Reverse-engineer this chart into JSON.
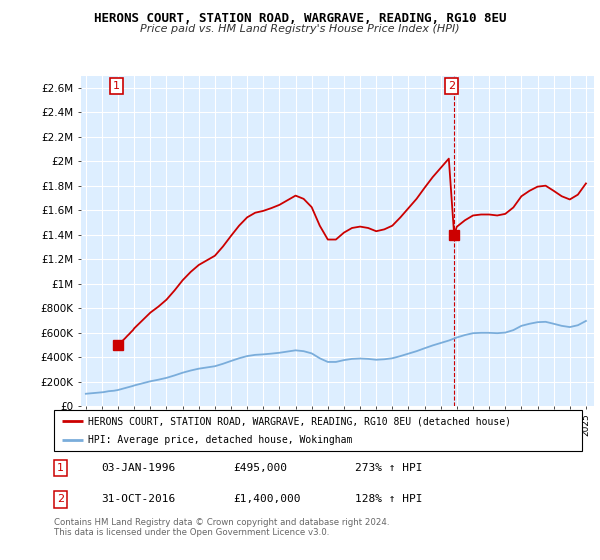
{
  "title": "HERONS COURT, STATION ROAD, WARGRAVE, READING, RG10 8EU",
  "subtitle": "Price paid vs. HM Land Registry's House Price Index (HPI)",
  "sale1_date": "03-JAN-1996",
  "sale1_price": 495000,
  "sale1_label": "£495,000",
  "sale1_hpi": "273% ↑ HPI",
  "sale1_year": 1996.0,
  "sale2_date": "31-OCT-2016",
  "sale2_price": 1400000,
  "sale2_label": "£1,400,000",
  "sale2_hpi": "128% ↑ HPI",
  "sale2_year": 2016.83,
  "legend_line1": "HERONS COURT, STATION ROAD, WARGRAVE, READING, RG10 8EU (detached house)",
  "legend_line2": "HPI: Average price, detached house, Wokingham",
  "footer": "Contains HM Land Registry data © Crown copyright and database right 2024.\nThis data is licensed under the Open Government Licence v3.0.",
  "sale_color": "#cc0000",
  "hpi_color": "#7aaddb",
  "bg_color": "#ddeeff",
  "ylim_max": 2700000,
  "ylim_min": 0,
  "xlim_min": 1993.7,
  "xlim_max": 2025.5,
  "ytick_interval": 200000,
  "hpi_data_years": [
    1994.0,
    1994.08,
    1994.17,
    1994.25,
    1994.33,
    1994.42,
    1994.5,
    1994.58,
    1994.67,
    1994.75,
    1994.83,
    1994.92,
    1995.0,
    1995.08,
    1995.17,
    1995.25,
    1995.33,
    1995.42,
    1995.5,
    1995.58,
    1995.67,
    1995.75,
    1995.83,
    1995.92,
    1996.0,
    1996.08,
    1996.17,
    1996.25,
    1996.33,
    1996.42,
    1996.5,
    1996.58,
    1996.67,
    1996.75,
    1996.83,
    1996.92,
    1997.0,
    1997.5,
    1998.0,
    1998.5,
    1999.0,
    1999.5,
    2000.0,
    2000.5,
    2001.0,
    2001.5,
    2002.0,
    2002.5,
    2003.0,
    2003.5,
    2004.0,
    2004.5,
    2005.0,
    2005.5,
    2006.0,
    2006.5,
    2007.0,
    2007.5,
    2008.0,
    2008.5,
    2009.0,
    2009.5,
    2010.0,
    2010.5,
    2011.0,
    2011.5,
    2012.0,
    2012.5,
    2013.0,
    2013.5,
    2014.0,
    2014.5,
    2015.0,
    2015.5,
    2016.0,
    2016.5,
    2017.0,
    2017.5,
    2018.0,
    2018.5,
    2019.0,
    2019.5,
    2020.0,
    2020.5,
    2021.0,
    2021.5,
    2022.0,
    2022.5,
    2023.0,
    2023.5,
    2024.0,
    2024.5,
    2025.0
  ],
  "hpi_data_values": [
    100000,
    101000,
    102000,
    103000,
    104000,
    105000,
    106000,
    107000,
    108000,
    109000,
    110000,
    111000,
    112000,
    113000,
    115000,
    117000,
    119000,
    121000,
    122000,
    123000,
    124000,
    125000,
    127000,
    129000,
    131000,
    134000,
    137000,
    140000,
    143000,
    146000,
    149000,
    152000,
    155000,
    158000,
    161000,
    164000,
    168000,
    185000,
    202000,
    215000,
    230000,
    250000,
    272000,
    290000,
    305000,
    315000,
    325000,
    345000,
    368000,
    390000,
    408000,
    418000,
    422000,
    428000,
    435000,
    445000,
    455000,
    448000,
    430000,
    390000,
    360000,
    360000,
    375000,
    385000,
    388000,
    385000,
    378000,
    382000,
    390000,
    408000,
    428000,
    448000,
    472000,
    495000,
    515000,
    535000,
    560000,
    580000,
    595000,
    598000,
    598000,
    595000,
    600000,
    620000,
    655000,
    672000,
    685000,
    688000,
    672000,
    655000,
    645000,
    660000,
    695000
  ],
  "prop_data_years_before": [
    1996.0,
    1996.08,
    1996.17,
    1996.25,
    1996.33,
    1996.42,
    1996.5,
    1996.58,
    1996.67,
    1996.75,
    1996.83,
    1996.92,
    1997.0,
    1997.5,
    1998.0,
    1998.5,
    1999.0,
    1999.5,
    2000.0,
    2000.5,
    2001.0,
    2001.5,
    2002.0,
    2002.5,
    2003.0,
    2003.5,
    2004.0,
    2004.5,
    2005.0,
    2005.5,
    2006.0,
    2006.5,
    2007.0,
    2007.5,
    2008.0,
    2008.5,
    2009.0,
    2009.5,
    2010.0,
    2010.5,
    2011.0,
    2011.5,
    2012.0,
    2012.5,
    2013.0,
    2013.5,
    2014.0,
    2014.5,
    2015.0,
    2015.5,
    2016.0,
    2016.5,
    2016.83
  ],
  "prop_data_years_after": [
    2016.83,
    2017.0,
    2017.5,
    2018.0,
    2018.5,
    2019.0,
    2019.5,
    2020.0,
    2020.5,
    2021.0,
    2021.5,
    2022.0,
    2022.5,
    2023.0,
    2023.5,
    2024.0,
    2024.5,
    2025.0
  ]
}
